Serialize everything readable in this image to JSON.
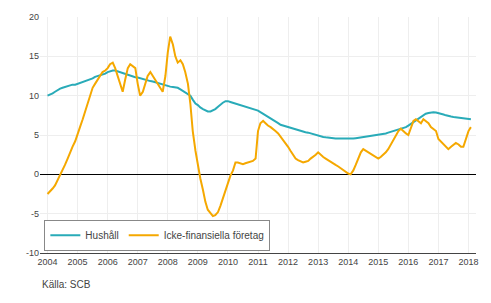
{
  "chart_data": {
    "type": "line",
    "annotations": [
      "Källa: SCB"
    ],
    "x": [
      2004.0,
      2004.08,
      2004.17,
      2004.25,
      2004.33,
      2004.42,
      2004.5,
      2004.58,
      2004.67,
      2004.75,
      2004.83,
      2004.92,
      2005.0,
      2005.08,
      2005.17,
      2005.25,
      2005.33,
      2005.42,
      2005.5,
      2005.58,
      2005.67,
      2005.75,
      2005.83,
      2005.92,
      2006.0,
      2006.08,
      2006.17,
      2006.25,
      2006.33,
      2006.42,
      2006.5,
      2006.58,
      2006.67,
      2006.75,
      2006.83,
      2006.92,
      2007.0,
      2007.08,
      2007.17,
      2007.25,
      2007.33,
      2007.42,
      2007.5,
      2007.58,
      2007.67,
      2007.75,
      2007.83,
      2007.92,
      2008.0,
      2008.08,
      2008.17,
      2008.25,
      2008.33,
      2008.42,
      2008.5,
      2008.58,
      2008.67,
      2008.75,
      2008.83,
      2008.92,
      2009.0,
      2009.08,
      2009.17,
      2009.25,
      2009.33,
      2009.42,
      2009.5,
      2009.58,
      2009.67,
      2009.75,
      2009.83,
      2009.92,
      2010.0,
      2010.08,
      2010.17,
      2010.25,
      2010.33,
      2010.42,
      2010.5,
      2010.58,
      2010.67,
      2010.75,
      2010.83,
      2010.92,
      2011.0,
      2011.08,
      2011.17,
      2011.25,
      2011.33,
      2011.42,
      2011.5,
      2011.58,
      2011.67,
      2011.75,
      2011.83,
      2011.92,
      2012.0,
      2012.08,
      2012.17,
      2012.25,
      2012.33,
      2012.42,
      2012.5,
      2012.58,
      2012.67,
      2012.75,
      2012.83,
      2012.92,
      2013.0,
      2013.08,
      2013.17,
      2013.25,
      2013.33,
      2013.42,
      2013.5,
      2013.58,
      2013.67,
      2013.75,
      2013.83,
      2013.92,
      2014.0,
      2014.08,
      2014.17,
      2014.25,
      2014.33,
      2014.42,
      2014.5,
      2014.58,
      2014.67,
      2014.75,
      2014.83,
      2014.92,
      2015.0,
      2015.08,
      2015.17,
      2015.25,
      2015.33,
      2015.42,
      2015.5,
      2015.58,
      2015.67,
      2015.75,
      2015.83,
      2015.92,
      2016.0,
      2016.08,
      2016.17,
      2016.25,
      2016.33,
      2016.42,
      2016.5,
      2016.58,
      2016.67,
      2016.75,
      2016.83,
      2016.92,
      2017.0,
      2017.08,
      2017.17,
      2017.25,
      2017.33,
      2017.42,
      2017.5,
      2017.58,
      2017.67,
      2017.75,
      2017.83,
      2017.92,
      2018.0,
      2018.08
    ],
    "series": [
      {
        "name": "Hushåll",
        "color": "#29ABB8",
        "values": [
          10.0,
          10.1,
          10.3,
          10.5,
          10.7,
          10.9,
          11.0,
          11.1,
          11.2,
          11.3,
          11.4,
          11.4,
          11.5,
          11.6,
          11.7,
          11.8,
          11.9,
          12.1,
          12.2,
          12.4,
          12.5,
          12.6,
          12.7,
          12.8,
          13.0,
          13.1,
          13.2,
          13.2,
          13.1,
          13.0,
          12.8,
          12.7,
          12.6,
          12.5,
          12.4,
          12.35,
          12.3,
          12.2,
          12.1,
          12.0,
          11.9,
          11.85,
          11.8,
          11.7,
          11.6,
          11.5,
          11.4,
          11.3,
          11.2,
          11.15,
          11.1,
          11.05,
          11.0,
          10.8,
          10.6,
          10.4,
          10.2,
          10.0,
          9.5,
          9.0,
          8.8,
          8.5,
          8.3,
          8.1,
          8.0,
          8.0,
          8.1,
          8.3,
          8.6,
          8.9,
          9.1,
          9.3,
          9.3,
          9.2,
          9.1,
          9.0,
          8.9,
          8.8,
          8.7,
          8.6,
          8.5,
          8.4,
          8.3,
          8.2,
          8.1,
          7.9,
          7.7,
          7.5,
          7.3,
          7.1,
          6.9,
          6.7,
          6.5,
          6.3,
          6.2,
          6.1,
          6.0,
          5.9,
          5.8,
          5.7,
          5.6,
          5.5,
          5.4,
          5.35,
          5.3,
          5.2,
          5.1,
          5.0,
          4.9,
          4.8,
          4.75,
          4.7,
          4.65,
          4.6,
          4.58,
          4.56,
          4.55,
          4.54,
          4.53,
          4.52,
          4.5,
          4.52,
          4.55,
          4.6,
          4.65,
          4.7,
          4.75,
          4.8,
          4.85,
          4.9,
          4.95,
          5.0,
          5.0,
          5.05,
          5.1,
          5.2,
          5.3,
          5.4,
          5.5,
          5.6,
          5.7,
          5.8,
          5.9,
          6.0,
          6.2,
          6.4,
          6.6,
          6.8,
          7.0,
          7.2,
          7.5,
          7.7,
          7.8,
          7.9,
          7.9,
          7.85,
          7.8,
          7.7,
          7.6,
          7.5,
          7.4,
          7.35,
          7.3,
          7.25,
          7.2,
          7.15,
          7.1,
          7.05,
          7.0,
          7.0
        ]
      },
      {
        "name": "Icke-finansiella företag",
        "color": "#F5A800",
        "values": [
          -2.5,
          -2.2,
          -1.8,
          -1.4,
          -0.8,
          -0.2,
          0.5,
          1.2,
          2.0,
          2.8,
          3.5,
          4.2,
          5.0,
          6.0,
          7.0,
          8.0,
          9.0,
          10.0,
          11.0,
          11.5,
          12.0,
          12.5,
          13.0,
          13.2,
          13.5,
          14.0,
          14.2,
          13.5,
          12.5,
          11.5,
          10.5,
          12.0,
          13.5,
          14.0,
          13.8,
          13.5,
          11.5,
          10.0,
          10.5,
          11.5,
          12.5,
          13.0,
          12.5,
          12.0,
          11.5,
          11.0,
          10.5,
          12.5,
          15.5,
          17.5,
          16.5,
          15.0,
          14.2,
          14.5,
          14.0,
          13.0,
          11.5,
          9.0,
          5.5,
          3.0,
          1.0,
          -0.5,
          -2.0,
          -3.5,
          -4.5,
          -5.0,
          -5.3,
          -5.2,
          -4.8,
          -4.0,
          -3.0,
          -2.0,
          -1.0,
          -0.2,
          0.5,
          1.5,
          1.5,
          1.4,
          1.3,
          1.4,
          1.5,
          1.6,
          1.7,
          2.0,
          5.5,
          6.5,
          6.8,
          6.5,
          6.2,
          6.0,
          5.8,
          5.5,
          5.2,
          4.8,
          4.5,
          4.0,
          3.5,
          3.0,
          2.5,
          2.0,
          1.8,
          1.6,
          1.5,
          1.6,
          1.7,
          2.0,
          2.2,
          2.5,
          2.8,
          2.5,
          2.2,
          2.0,
          1.8,
          1.5,
          1.3,
          1.2,
          1.0,
          0.8,
          0.5,
          0.3,
          0.1,
          0.0,
          0.5,
          1.2,
          2.0,
          2.8,
          3.2,
          3.0,
          2.8,
          2.6,
          2.4,
          2.2,
          2.0,
          2.2,
          2.5,
          2.8,
          3.2,
          3.8,
          4.5,
          5.0,
          5.5,
          5.8,
          5.5,
          5.2,
          5.0,
          6.0,
          6.8,
          7.0,
          6.8,
          6.5,
          7.0,
          6.8,
          6.5,
          6.0,
          5.8,
          5.5,
          4.5,
          4.2,
          3.8,
          3.5,
          3.2,
          3.5,
          3.8,
          4.0,
          3.8,
          3.5,
          3.5,
          4.5,
          5.5,
          6.0
        ]
      }
    ],
    "xlim": [
      2003.75,
      2018.25
    ],
    "xticks": [
      2004,
      2005,
      2006,
      2007,
      2008,
      2009,
      2010,
      2011,
      2012,
      2013,
      2014,
      2015,
      2016,
      2017,
      2018
    ],
    "ylim": [
      -10,
      20
    ],
    "yticks": [
      -10,
      -5,
      0,
      5,
      10,
      15,
      20
    ],
    "grid": true,
    "legend": "lower left"
  }
}
